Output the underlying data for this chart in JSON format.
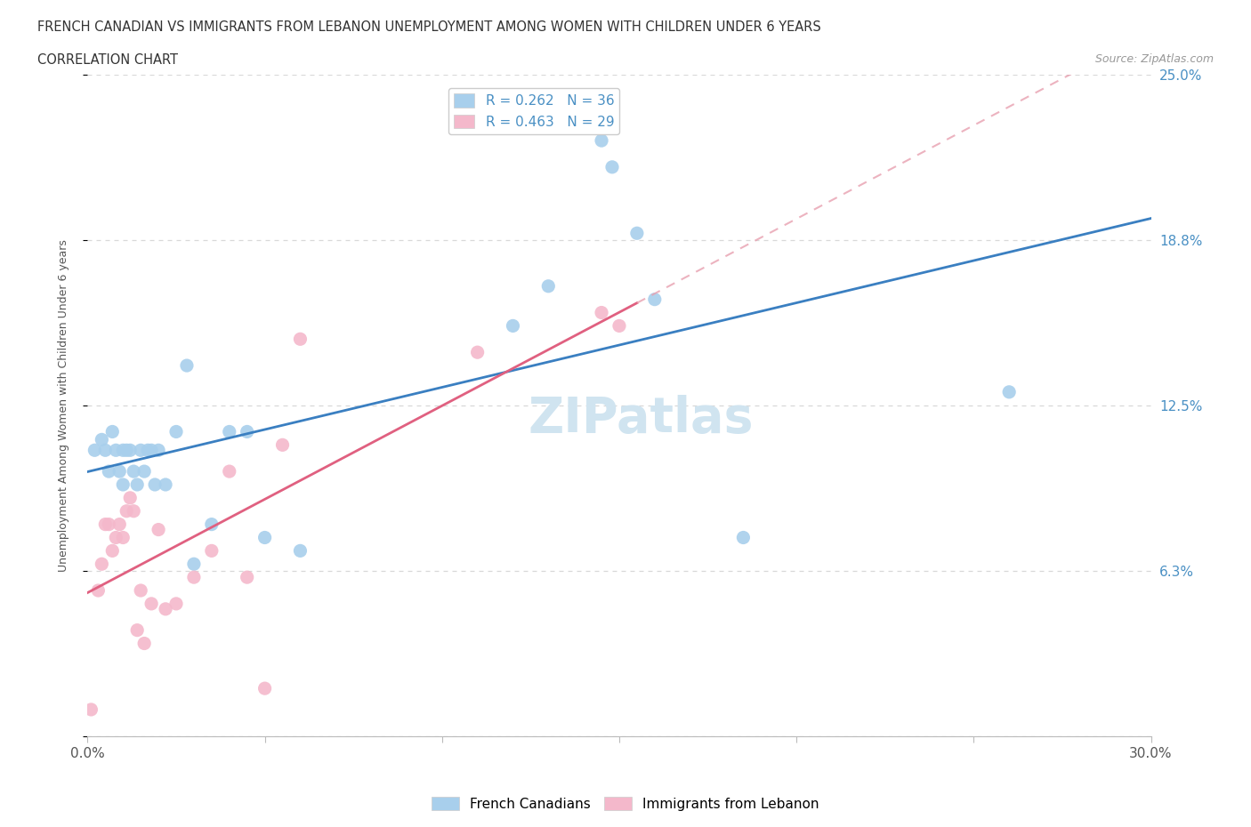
{
  "title_line1": "FRENCH CANADIAN VS IMMIGRANTS FROM LEBANON UNEMPLOYMENT AMONG WOMEN WITH CHILDREN UNDER 6 YEARS",
  "title_line2": "CORRELATION CHART",
  "source": "Source: ZipAtlas.com",
  "ylabel": "Unemployment Among Women with Children Under 6 years",
  "xlim": [
    0.0,
    0.3
  ],
  "ylim": [
    0.0,
    0.25
  ],
  "xticks": [
    0.0,
    0.05,
    0.1,
    0.15,
    0.2,
    0.25,
    0.3
  ],
  "xticklabels": [
    "0.0%",
    "",
    "",
    "",
    "",
    "",
    "30.0%"
  ],
  "ytick_vals": [
    0.0,
    0.0625,
    0.125,
    0.1875,
    0.25
  ],
  "ytick_labels": [
    "",
    "6.3%",
    "12.5%",
    "18.8%",
    "25.0%"
  ],
  "french_canadians_x": [
    0.002,
    0.004,
    0.005,
    0.006,
    0.007,
    0.008,
    0.009,
    0.01,
    0.01,
    0.011,
    0.012,
    0.013,
    0.014,
    0.015,
    0.016,
    0.017,
    0.018,
    0.019,
    0.02,
    0.022,
    0.025,
    0.028,
    0.03,
    0.035,
    0.04,
    0.045,
    0.05,
    0.06,
    0.12,
    0.13,
    0.145,
    0.148,
    0.155,
    0.16,
    0.185,
    0.26
  ],
  "french_canadians_y": [
    0.108,
    0.112,
    0.108,
    0.1,
    0.115,
    0.108,
    0.1,
    0.108,
    0.095,
    0.108,
    0.108,
    0.1,
    0.095,
    0.108,
    0.1,
    0.108,
    0.108,
    0.095,
    0.108,
    0.095,
    0.115,
    0.14,
    0.065,
    0.08,
    0.115,
    0.115,
    0.075,
    0.07,
    0.155,
    0.17,
    0.225,
    0.215,
    0.19,
    0.165,
    0.075,
    0.13
  ],
  "lebanon_x": [
    0.001,
    0.003,
    0.004,
    0.005,
    0.006,
    0.007,
    0.008,
    0.009,
    0.01,
    0.011,
    0.012,
    0.013,
    0.014,
    0.015,
    0.016,
    0.018,
    0.02,
    0.022,
    0.025,
    0.03,
    0.035,
    0.04,
    0.045,
    0.05,
    0.055,
    0.06,
    0.11,
    0.145,
    0.15
  ],
  "lebanon_y": [
    0.01,
    0.055,
    0.065,
    0.08,
    0.08,
    0.07,
    0.075,
    0.08,
    0.075,
    0.085,
    0.09,
    0.085,
    0.04,
    0.055,
    0.035,
    0.05,
    0.078,
    0.048,
    0.05,
    0.06,
    0.07,
    0.1,
    0.06,
    0.018,
    0.11,
    0.15,
    0.145,
    0.16,
    0.155
  ],
  "fc_R": 0.262,
  "fc_N": 36,
  "leb_R": 0.463,
  "leb_N": 29,
  "fc_dot_color": "#A8CFEC",
  "leb_dot_color": "#F4B8CB",
  "fc_line_color": "#3A7FC1",
  "leb_line_color": "#E06080",
  "leb_dash_color": "#E8A0B0",
  "background_color": "#FFFFFF",
  "plot_bg_color": "#FFFFFF",
  "grid_color": "#D8D8D8",
  "watermark_color": "#D0E4F0",
  "tick_color": "#4A90C4",
  "title_color": "#333333",
  "source_color": "#999999"
}
